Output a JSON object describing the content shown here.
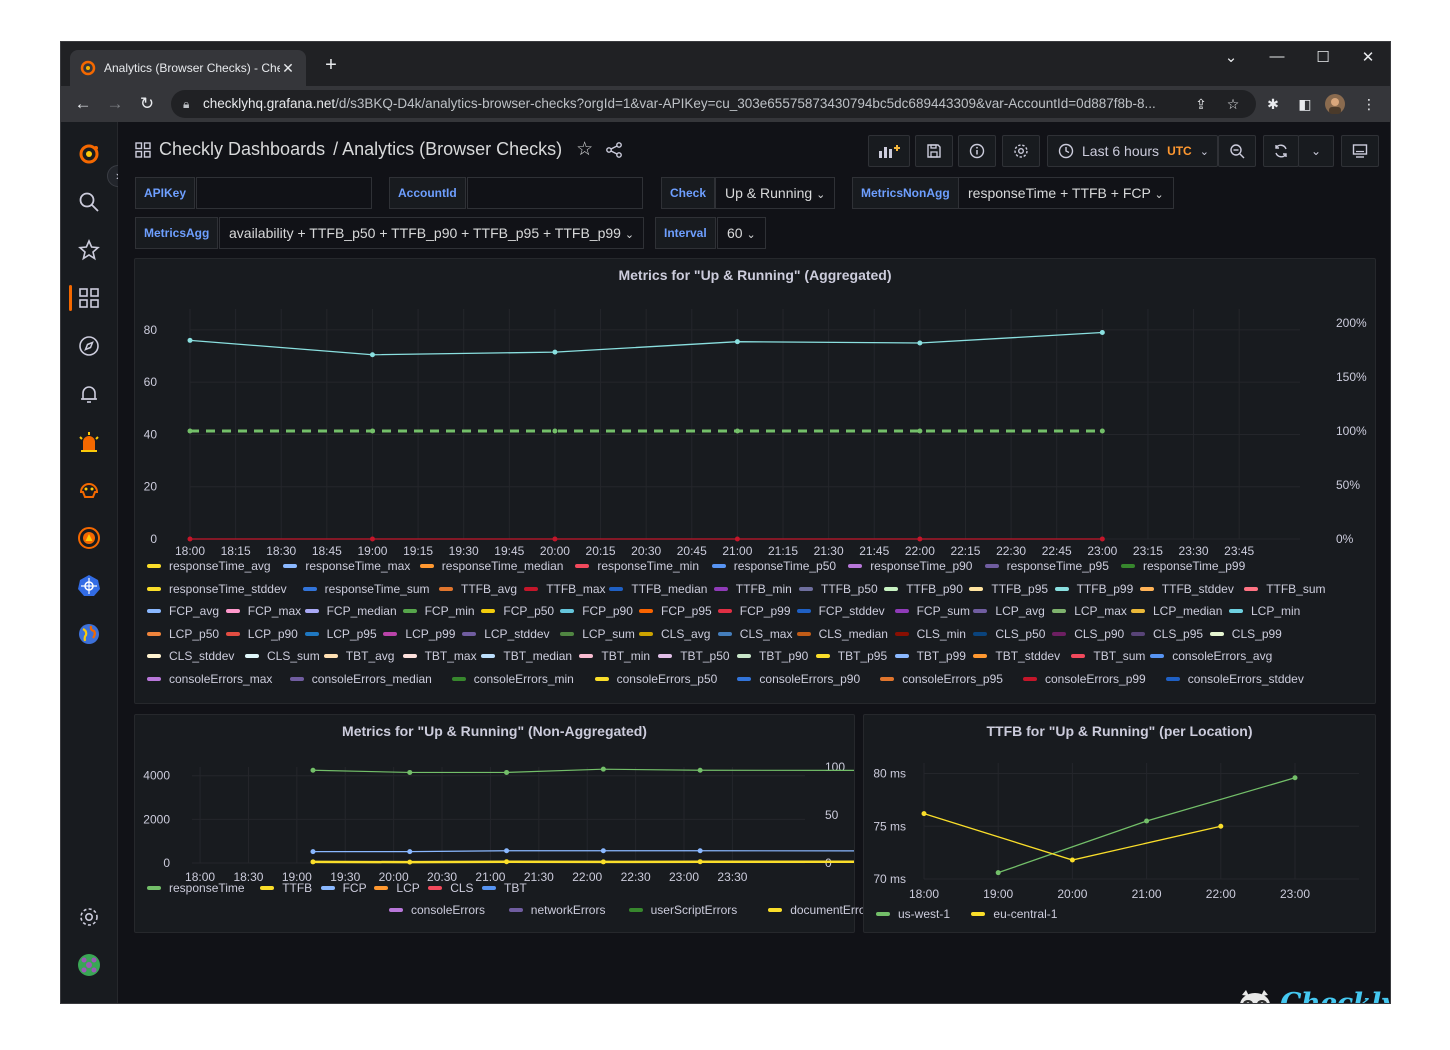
{
  "browser": {
    "tab_title": "Analytics (Browser Checks) - Che",
    "url_host": "checklyhq.grafana.net",
    "url_path": "/d/s3BKQ-D4k/analytics-browser-checks?orgId=1&var-APIKey=cu_303e65575873430794bc5dc689443309&var-AccountId=0d887f8b-8..."
  },
  "header": {
    "breadcrumb_folder": "Checkly Dashboards",
    "breadcrumb_sep": "/",
    "breadcrumb_title": "Analytics (Browser Checks)",
    "time_range": "Last 6 hours",
    "timezone": "UTC"
  },
  "variables": {
    "apikey_label": "APIKey",
    "apikey_value": "",
    "accountid_label": "AccountId",
    "accountid_value": "",
    "check_label": "Check",
    "check_value": "Up & Running",
    "metricsnonagg_label": "MetricsNonAgg",
    "metricsnonagg_value": "responseTime + TTFB + FCP",
    "metricsagg_label": "MetricsAgg",
    "metricsagg_value": "availability + TTFB_p50 + TTFB_p90 + TTFB_p95 + TTFB_p99",
    "interval_label": "Interval",
    "interval_value": "60"
  },
  "colors": {
    "accent": "#6e9fff",
    "teal": "#8ae0e0",
    "green": "#73bf69",
    "yellow": "#fade2a",
    "blue": "#8ab8ff",
    "orange": "#ff9830",
    "red": "#f2495c",
    "purple": "#b877d9"
  },
  "chart_data": [
    {
      "type": "line",
      "title": "Metrics for \"Up & Running\" (Aggregated)",
      "x_ticks": [
        "18:00",
        "18:15",
        "18:30",
        "18:45",
        "19:00",
        "19:15",
        "19:30",
        "19:45",
        "20:00",
        "20:15",
        "20:30",
        "20:45",
        "21:00",
        "21:15",
        "21:30",
        "21:45",
        "22:00",
        "22:15",
        "22:30",
        "22:45",
        "23:00",
        "23:15",
        "23:30",
        "23:45"
      ],
      "y_left_ticks": [
        "0",
        "20",
        "40",
        "60",
        "80"
      ],
      "y_right_ticks": [
        "0%",
        "50%",
        "100%",
        "150%",
        "200%"
      ],
      "ylim_left": [
        0,
        88
      ],
      "ylim_right": [
        0,
        200
      ],
      "x": [
        "18:00",
        "19:00",
        "20:00",
        "21:00",
        "22:00",
        "23:00"
      ],
      "series": [
        {
          "name": "TTFB_p99",
          "color": "#8ae0e0",
          "values": [
            76,
            70.5,
            71.5,
            75.5,
            75,
            79
          ]
        },
        {
          "name": "availability",
          "color": "#73bf69",
          "axis": "right",
          "dashed": true,
          "values": [
            100,
            100,
            100,
            100,
            100,
            100
          ]
        },
        {
          "name": "",
          "color": "#c4162a",
          "values": [
            0,
            0,
            0,
            0,
            0,
            0
          ]
        }
      ],
      "legend": [
        [
          "responseTime_avg",
          "#fade2a"
        ],
        [
          "responseTime_max",
          "#8ab8ff"
        ],
        [
          "responseTime_median",
          "#ff9830"
        ],
        [
          "responseTime_min",
          "#f2495c"
        ],
        [
          "responseTime_p50",
          "#5794f2"
        ],
        [
          "responseTime_p90",
          "#b877d9"
        ],
        [
          "responseTime_p95",
          "#705da0"
        ],
        [
          "responseTime_p99",
          "#37872d"
        ],
        [
          "responseTime_stddev",
          "#fade2a"
        ],
        [
          "responseTime_sum",
          "#3274d9"
        ],
        [
          "TTFB_avg",
          "#e0752d"
        ],
        [
          "TTFB_max",
          "#c4162a"
        ],
        [
          "TTFB_median",
          "#1f60c4"
        ],
        [
          "TTFB_min",
          "#8f3bb8"
        ],
        [
          "TTFB_p50",
          "#6e6e9e"
        ],
        [
          "TTFB_p90",
          "#c8f2c2"
        ],
        [
          "TTFB_p95",
          "#ffe4a0"
        ],
        [
          "TTFB_p99",
          "#8ae0e0"
        ],
        [
          "TTFB_stddev",
          "#ffb357"
        ],
        [
          "TTFB_sum",
          "#ff7383"
        ],
        [
          "FCP_avg",
          "#8ab8ff"
        ],
        [
          "FCP_max",
          "#ff99cc"
        ],
        [
          "FCP_median",
          "#a9a9f5"
        ],
        [
          "FCP_min",
          "#56a64b"
        ],
        [
          "FCP_p50",
          "#f2cc0c"
        ],
        [
          "FCP_p90",
          "#65c5db"
        ],
        [
          "FCP_p95",
          "#fa6400"
        ],
        [
          "FCP_p99",
          "#e02f44"
        ],
        [
          "FCP_stddev",
          "#1f60c4"
        ],
        [
          "FCP_sum",
          "#8f3bb8"
        ],
        [
          "LCP_avg",
          "#705da0"
        ],
        [
          "LCP_max",
          "#7eb26d"
        ],
        [
          "LCP_median",
          "#eab839"
        ],
        [
          "LCP_min",
          "#6ed0e0"
        ],
        [
          "LCP_p50",
          "#ef843c"
        ],
        [
          "LCP_p90",
          "#e24d42"
        ],
        [
          "LCP_p95",
          "#1f78c1"
        ],
        [
          "LCP_p99",
          "#ba43a9"
        ],
        [
          "LCP_stddev",
          "#705da0"
        ],
        [
          "LCP_sum",
          "#508642"
        ],
        [
          "CLS_avg",
          "#cca300"
        ],
        [
          "CLS_max",
          "#447ebc"
        ],
        [
          "CLS_median",
          "#c15c17"
        ],
        [
          "CLS_min",
          "#890f02"
        ],
        [
          "CLS_p50",
          "#0a437c"
        ],
        [
          "CLS_p90",
          "#6d1f62"
        ],
        [
          "CLS_p95",
          "#584477"
        ],
        [
          "CLS_p99",
          "#e5f5d0"
        ],
        [
          "CLS_stddev",
          "#fff3d0"
        ],
        [
          "CLS_sum",
          "#e0f7fa"
        ],
        [
          "TBT_avg",
          "#ffe0b2"
        ],
        [
          "TBT_max",
          "#fde0dc"
        ],
        [
          "TBT_median",
          "#bbdefb"
        ],
        [
          "TBT_min",
          "#f8bbd0"
        ],
        [
          "TBT_p50",
          "#e1bee7"
        ],
        [
          "TBT_p90",
          "#c8e6c9"
        ],
        [
          "TBT_p95",
          "#fade2a"
        ],
        [
          "TBT_p99",
          "#8ab8ff"
        ],
        [
          "TBT_stddev",
          "#ff9830"
        ],
        [
          "TBT_sum",
          "#f2495c"
        ],
        [
          "consoleErrors_avg",
          "#5794f2"
        ],
        [
          "consoleErrors_max",
          "#b877d9"
        ],
        [
          "consoleErrors_median",
          "#705da0"
        ],
        [
          "consoleErrors_min",
          "#37872d"
        ],
        [
          "consoleErrors_p50",
          "#fade2a"
        ],
        [
          "consoleErrors_p90",
          "#3274d9"
        ],
        [
          "consoleErrors_p95",
          "#e0752d"
        ],
        [
          "consoleErrors_p99",
          "#c4162a"
        ],
        [
          "consoleErrors_stddev",
          "#1f60c4"
        ]
      ]
    },
    {
      "type": "line",
      "title": "Metrics for \"Up & Running\" (Non-Aggregated)",
      "x_ticks": [
        "18:00",
        "18:30",
        "19:00",
        "19:30",
        "20:00",
        "20:30",
        "21:00",
        "21:30",
        "22:00",
        "22:30",
        "23:00",
        "23:30"
      ],
      "y_left_ticks": [
        "0",
        "2000",
        "4000"
      ],
      "y_right_ticks": [
        "0",
        "50",
        "100"
      ],
      "ylim_left": [
        0,
        4400
      ],
      "ylim_right": [
        0,
        100
      ],
      "x": [
        "19:10",
        "20:10",
        "21:10",
        "22:10",
        "23:10",
        "00:00"
      ],
      "series": [
        {
          "name": "responseTime",
          "color": "#73bf69",
          "values": [
            4250,
            4150,
            4150,
            4300,
            4250,
            4200
          ]
        },
        {
          "name": "FCP",
          "color": "#8ab8ff",
          "values": [
            520,
            520,
            560,
            560,
            560,
            520
          ]
        },
        {
          "name": "TTFB",
          "color": "#fade2a",
          "values": [
            50,
            40,
            60,
            50,
            60,
            50
          ]
        }
      ],
      "legend": [
        [
          "responseTime",
          "#73bf69"
        ],
        [
          "TTFB",
          "#fade2a"
        ],
        [
          "FCP",
          "#8ab8ff"
        ],
        [
          "LCP",
          "#ff9830"
        ],
        [
          "CLS",
          "#f2495c"
        ],
        [
          "TBT",
          "#5794f2"
        ],
        [
          "consoleErrors",
          "#b877d9"
        ],
        [
          "networkErrors",
          "#705da0"
        ],
        [
          "userScriptErrors",
          "#37872d"
        ],
        [
          "documentErrors",
          "#fade2a"
        ]
      ]
    },
    {
      "type": "line",
      "title": "TTFB for \"Up & Running\" (per Location)",
      "x_ticks": [
        "18:00",
        "19:00",
        "20:00",
        "21:00",
        "22:00",
        "23:00"
      ],
      "y_ticks": [
        "70 ms",
        "75 ms",
        "80 ms"
      ],
      "ylim": [
        70,
        81
      ],
      "series": [
        {
          "name": "us-west-1",
          "color": "#73bf69",
          "x": [
            "19:00",
            "21:00",
            "23:00"
          ],
          "values": [
            70.6,
            75.5,
            79.6
          ]
        },
        {
          "name": "eu-central-1",
          "color": "#fade2a",
          "x": [
            "18:00",
            "20:00",
            "22:00"
          ],
          "values": [
            76.2,
            71.8,
            75
          ]
        }
      ]
    }
  ],
  "branding": {
    "logo_text": "Checkly"
  }
}
